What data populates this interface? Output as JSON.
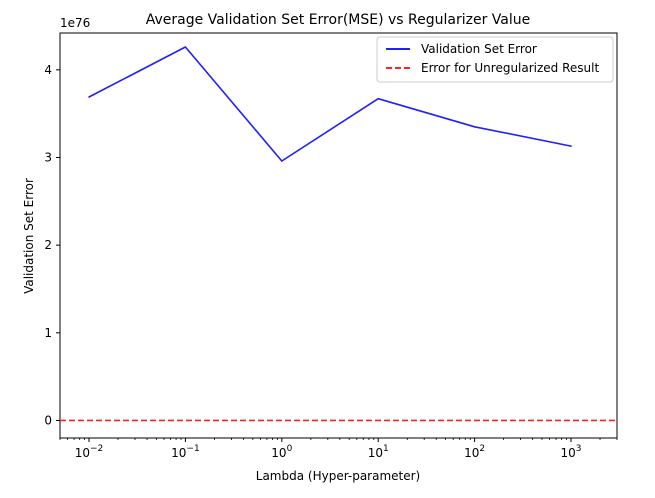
{
  "chart_data": {
    "type": "line",
    "title": "Average Validation Set Error(MSE) vs Regularizer Value",
    "xlabel": "Lambda (Hyper-parameter)",
    "ylabel": "Validation Set Error",
    "x_scale": "log",
    "y_scale_factor_label": "1e76",
    "x": [
      0.01,
      0.1,
      1,
      10,
      100,
      1000
    ],
    "xlim": [
      0.005,
      3000
    ],
    "ylim": [
      -2e+75,
      4.42e+76
    ],
    "x_ticks": [
      {
        "value": 0.01,
        "base": "10",
        "exp": "−2"
      },
      {
        "value": 0.1,
        "base": "10",
        "exp": "−1"
      },
      {
        "value": 1,
        "base": "10",
        "exp": "0"
      },
      {
        "value": 10,
        "base": "10",
        "exp": "1"
      },
      {
        "value": 100,
        "base": "10",
        "exp": "2"
      },
      {
        "value": 1000,
        "base": "10",
        "exp": "3"
      }
    ],
    "y_ticks": [
      {
        "value": 0,
        "label": "0"
      },
      {
        "value": 1e+76,
        "label": "1"
      },
      {
        "value": 2e+76,
        "label": "2"
      },
      {
        "value": 3e+76,
        "label": "3"
      },
      {
        "value": 4e+76,
        "label": "4"
      }
    ],
    "series": [
      {
        "name": "Validation Set Error",
        "style": "solid",
        "color": "#1f1fff",
        "values": [
          3.69e+76,
          4.26e+76,
          2.96e+76,
          3.67e+76,
          3.35e+76,
          3.13e+76
        ]
      },
      {
        "name": "Error for Unregularized Result",
        "style": "dashed",
        "color": "#ff2020",
        "hline": 0
      }
    ],
    "legend": "top-right",
    "grid": false
  }
}
